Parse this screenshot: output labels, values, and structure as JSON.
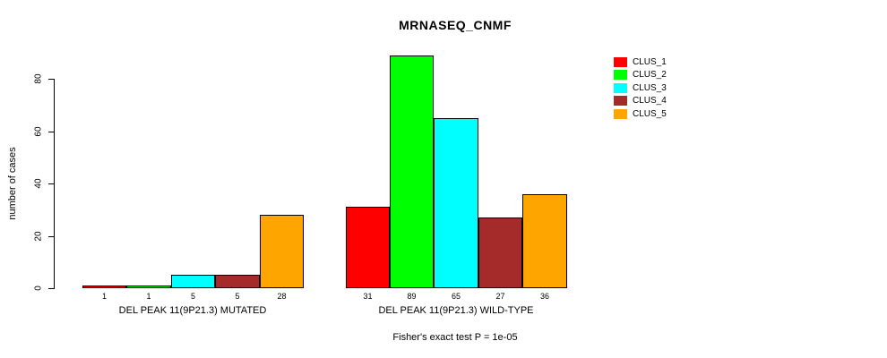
{
  "chart_data": {
    "type": "bar",
    "title": "MRNASEQ_CNMF",
    "ylabel": "number of cases",
    "ylim": [
      0,
      80
    ],
    "yticks": [
      0,
      20,
      40,
      60,
      80
    ],
    "grid": false,
    "legend_position": "right",
    "categories": [
      "DEL PEAK 11(9P21.3) MUTATED",
      "DEL PEAK 11(9P21.3) WILD-TYPE"
    ],
    "series": [
      {
        "name": "CLUS_1",
        "color": "#FF0000",
        "values": [
          1,
          31
        ]
      },
      {
        "name": "CLUS_2",
        "color": "#00FF00",
        "values": [
          1,
          89
        ]
      },
      {
        "name": "CLUS_3",
        "color": "#00FFFF",
        "values": [
          5,
          65
        ]
      },
      {
        "name": "CLUS_4",
        "color": "#A52A2A",
        "values": [
          5,
          27
        ]
      },
      {
        "name": "CLUS_5",
        "color": "#FFA500",
        "values": [
          28,
          36
        ]
      }
    ],
    "bar_value_labels_shown": true,
    "footnote": "Fisher's exact test P = 1e-05"
  }
}
